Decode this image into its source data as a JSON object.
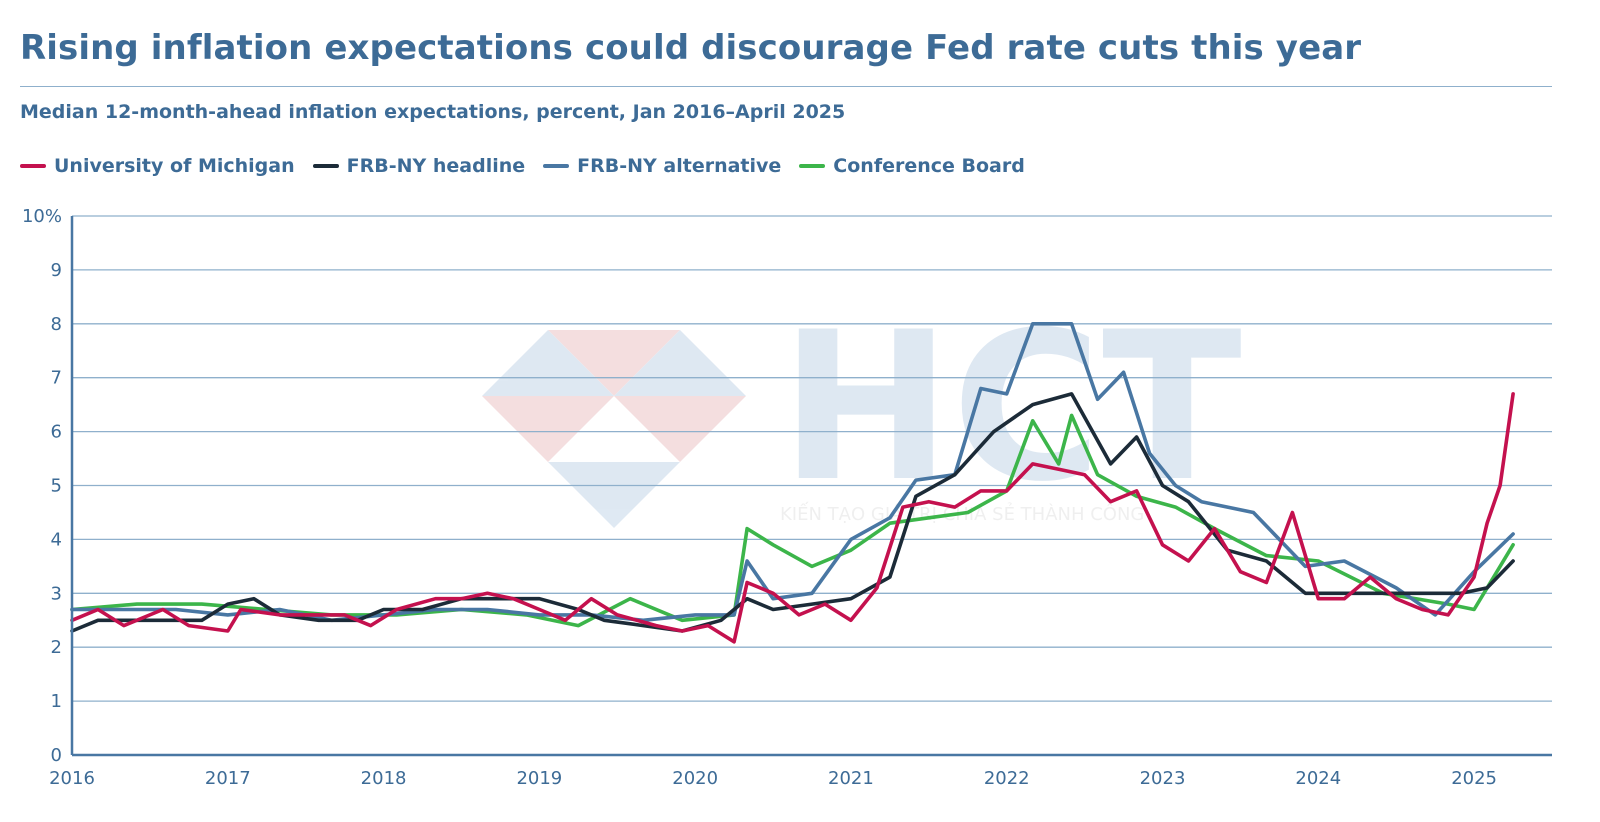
{
  "header": {
    "title": "Rising inflation expectations could discourage Fed rate cuts this year",
    "subtitle": "Median 12-month-ahead inflation expectations, percent, Jan 2016–April 2025"
  },
  "watermark": {
    "logo": "HCT",
    "tagline": "KIẾN TẠO GIÁ TRỊ CHIA SẺ THÀNH CÔNG"
  },
  "colors": {
    "accent": "#3d6b96",
    "michigan": "#c4114e",
    "frb_headline": "#1c2b38",
    "frb_alternative": "#4977a3",
    "conference_board": "#3cb54a",
    "grid": "#8fb0cc"
  },
  "chart_data": {
    "type": "line",
    "title": "Rising inflation expectations could discourage Fed rate cuts this year",
    "subtitle": "Median 12-month-ahead inflation expectations, percent, Jan 2016–April 2025",
    "xlabel": "",
    "ylabel": "",
    "x_start": "2016-01",
    "x_end": "2025-04",
    "xlim": [
      2016,
      2025.5
    ],
    "ylim": [
      0,
      10
    ],
    "yticks": [
      "0",
      "1",
      "2",
      "3",
      "4",
      "5",
      "6",
      "7",
      "8",
      "9",
      "10%"
    ],
    "xticks": [
      "2016",
      "2017",
      "2018",
      "2019",
      "2020",
      "2021",
      "2022",
      "2023",
      "2024",
      "2025"
    ],
    "grid": true,
    "legend_position": "top-left",
    "series": [
      {
        "name": "University of Michigan",
        "color": "#c4114e",
        "points": [
          [
            "2016-01",
            2.5
          ],
          [
            "2016-03",
            2.7
          ],
          [
            "2016-05",
            2.4
          ],
          [
            "2016-08",
            2.7
          ],
          [
            "2016-10",
            2.4
          ],
          [
            "2017-01",
            2.3
          ],
          [
            "2017-02",
            2.7
          ],
          [
            "2017-05",
            2.6
          ],
          [
            "2017-08",
            2.6
          ],
          [
            "2017-10",
            2.6
          ],
          [
            "2017-12",
            2.4
          ],
          [
            "2018-02",
            2.7
          ],
          [
            "2018-05",
            2.9
          ],
          [
            "2018-07",
            2.9
          ],
          [
            "2018-09",
            3.0
          ],
          [
            "2018-11",
            2.9
          ],
          [
            "2019-01",
            2.7
          ],
          [
            "2019-03",
            2.5
          ],
          [
            "2019-05",
            2.9
          ],
          [
            "2019-07",
            2.6
          ],
          [
            "2019-10",
            2.4
          ],
          [
            "2019-12",
            2.3
          ],
          [
            "2020-02",
            2.4
          ],
          [
            "2020-04",
            2.1
          ],
          [
            "2020-05",
            3.2
          ],
          [
            "2020-07",
            3.0
          ],
          [
            "2020-09",
            2.6
          ],
          [
            "2020-11",
            2.8
          ],
          [
            "2021-01",
            2.5
          ],
          [
            "2021-03",
            3.1
          ],
          [
            "2021-05",
            4.6
          ],
          [
            "2021-07",
            4.7
          ],
          [
            "2021-09",
            4.6
          ],
          [
            "2021-11",
            4.9
          ],
          [
            "2022-01",
            4.9
          ],
          [
            "2022-03",
            5.4
          ],
          [
            "2022-05",
            5.3
          ],
          [
            "2022-07",
            5.2
          ],
          [
            "2022-09",
            4.7
          ],
          [
            "2022-11",
            4.9
          ],
          [
            "2023-01",
            3.9
          ],
          [
            "2023-03",
            3.6
          ],
          [
            "2023-05",
            4.2
          ],
          [
            "2023-07",
            3.4
          ],
          [
            "2023-09",
            3.2
          ],
          [
            "2023-11",
            4.5
          ],
          [
            "2024-01",
            2.9
          ],
          [
            "2024-03",
            2.9
          ],
          [
            "2024-05",
            3.3
          ],
          [
            "2024-07",
            2.9
          ],
          [
            "2024-09",
            2.7
          ],
          [
            "2024-11",
            2.6
          ],
          [
            "2025-01",
            3.3
          ],
          [
            "2025-02",
            4.3
          ],
          [
            "2025-03",
            5.0
          ],
          [
            "2025-04",
            6.7
          ]
        ]
      },
      {
        "name": "FRB-NY headline",
        "color": "#1c2b38",
        "points": [
          [
            "2016-01",
            2.3
          ],
          [
            "2016-03",
            2.5
          ],
          [
            "2016-06",
            2.5
          ],
          [
            "2016-09",
            2.5
          ],
          [
            "2016-11",
            2.5
          ],
          [
            "2017-01",
            2.8
          ],
          [
            "2017-03",
            2.9
          ],
          [
            "2017-05",
            2.6
          ],
          [
            "2017-08",
            2.5
          ],
          [
            "2017-11",
            2.5
          ],
          [
            "2018-01",
            2.7
          ],
          [
            "2018-04",
            2.7
          ],
          [
            "2018-07",
            2.9
          ],
          [
            "2018-10",
            2.9
          ],
          [
            "2019-01",
            2.9
          ],
          [
            "2019-04",
            2.7
          ],
          [
            "2019-06",
            2.5
          ],
          [
            "2019-09",
            2.4
          ],
          [
            "2019-12",
            2.3
          ],
          [
            "2020-03",
            2.5
          ],
          [
            "2020-05",
            2.9
          ],
          [
            "2020-07",
            2.7
          ],
          [
            "2020-10",
            2.8
          ],
          [
            "2021-01",
            2.9
          ],
          [
            "2021-04",
            3.3
          ],
          [
            "2021-06",
            4.8
          ],
          [
            "2021-09",
            5.2
          ],
          [
            "2021-12",
            6.0
          ],
          [
            "2022-03",
            6.5
          ],
          [
            "2022-06",
            6.7
          ],
          [
            "2022-09",
            5.4
          ],
          [
            "2022-11",
            5.9
          ],
          [
            "2023-01",
            5.0
          ],
          [
            "2023-03",
            4.7
          ],
          [
            "2023-06",
            3.8
          ],
          [
            "2023-09",
            3.6
          ],
          [
            "2023-12",
            3.0
          ],
          [
            "2024-03",
            3.0
          ],
          [
            "2024-06",
            3.0
          ],
          [
            "2024-09",
            3.0
          ],
          [
            "2024-12",
            3.0
          ],
          [
            "2025-02",
            3.1
          ],
          [
            "2025-04",
            3.6
          ]
        ]
      },
      {
        "name": "FRB-NY alternative",
        "color": "#4977a3",
        "points": [
          [
            "2016-01",
            2.7
          ],
          [
            "2016-05",
            2.7
          ],
          [
            "2016-09",
            2.7
          ],
          [
            "2017-01",
            2.6
          ],
          [
            "2017-05",
            2.7
          ],
          [
            "2017-09",
            2.5
          ],
          [
            "2018-01",
            2.6
          ],
          [
            "2018-05",
            2.7
          ],
          [
            "2018-09",
            2.7
          ],
          [
            "2019-01",
            2.6
          ],
          [
            "2019-05",
            2.6
          ],
          [
            "2019-09",
            2.5
          ],
          [
            "2020-01",
            2.6
          ],
          [
            "2020-04",
            2.6
          ],
          [
            "2020-05",
            3.6
          ],
          [
            "2020-07",
            2.9
          ],
          [
            "2020-10",
            3.0
          ],
          [
            "2021-01",
            4.0
          ],
          [
            "2021-04",
            4.4
          ],
          [
            "2021-06",
            5.1
          ],
          [
            "2021-09",
            5.2
          ],
          [
            "2021-11",
            6.8
          ],
          [
            "2022-01",
            6.7
          ],
          [
            "2022-03",
            8.0
          ],
          [
            "2022-06",
            8.0
          ],
          [
            "2022-08",
            6.6
          ],
          [
            "2022-10",
            7.1
          ],
          [
            "2022-12",
            5.6
          ],
          [
            "2023-02",
            5.0
          ],
          [
            "2023-04",
            4.7
          ],
          [
            "2023-08",
            4.5
          ],
          [
            "2023-12",
            3.5
          ],
          [
            "2024-03",
            3.6
          ],
          [
            "2024-07",
            3.1
          ],
          [
            "2024-10",
            2.6
          ],
          [
            "2025-01",
            3.4
          ],
          [
            "2025-04",
            4.1
          ]
        ]
      },
      {
        "name": "Conference Board",
        "color": "#3cb54a",
        "points": [
          [
            "2016-01",
            2.7
          ],
          [
            "2016-06",
            2.8
          ],
          [
            "2016-11",
            2.8
          ],
          [
            "2017-04",
            2.7
          ],
          [
            "2017-09",
            2.6
          ],
          [
            "2018-02",
            2.6
          ],
          [
            "2018-07",
            2.7
          ],
          [
            "2018-12",
            2.6
          ],
          [
            "2019-04",
            2.4
          ],
          [
            "2019-08",
            2.9
          ],
          [
            "2019-12",
            2.5
          ],
          [
            "2020-04",
            2.6
          ],
          [
            "2020-05",
            4.2
          ],
          [
            "2020-07",
            3.9
          ],
          [
            "2020-10",
            3.5
          ],
          [
            "2021-01",
            3.8
          ],
          [
            "2021-04",
            4.3
          ],
          [
            "2021-07",
            4.4
          ],
          [
            "2021-10",
            4.5
          ],
          [
            "2022-01",
            4.9
          ],
          [
            "2022-03",
            6.2
          ],
          [
            "2022-05",
            5.4
          ],
          [
            "2022-06",
            6.3
          ],
          [
            "2022-08",
            5.2
          ],
          [
            "2022-11",
            4.8
          ],
          [
            "2023-02",
            4.6
          ],
          [
            "2023-05",
            4.2
          ],
          [
            "2023-09",
            3.7
          ],
          [
            "2024-01",
            3.6
          ],
          [
            "2024-06",
            3.0
          ],
          [
            "2024-11",
            2.8
          ],
          [
            "2025-01",
            2.7
          ],
          [
            "2025-04",
            3.9
          ]
        ]
      }
    ]
  }
}
